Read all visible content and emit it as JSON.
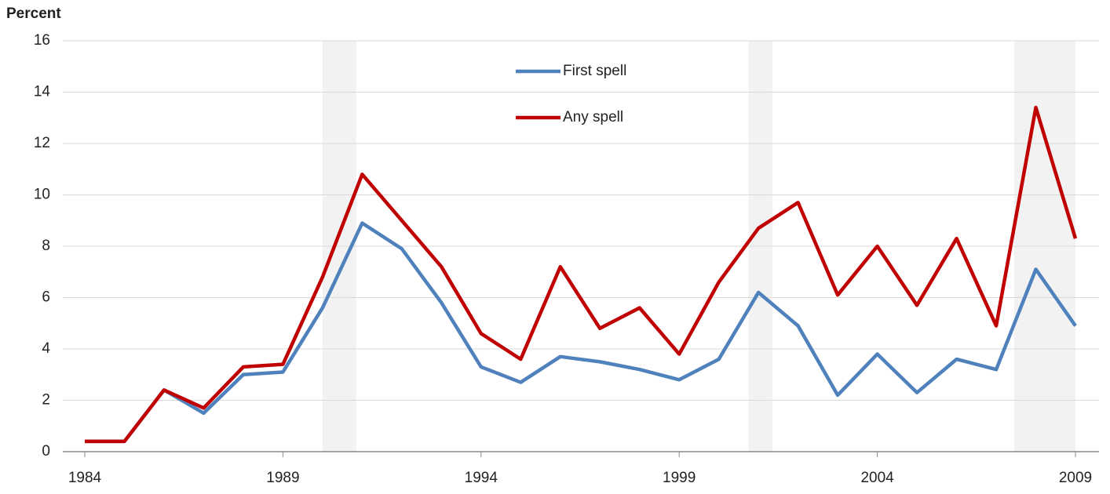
{
  "chart_data": {
    "type": "line",
    "y_label": "Percent",
    "x": [
      1984,
      1985,
      1986,
      1987,
      1988,
      1989,
      1990,
      1991,
      1992,
      1993,
      1994,
      1995,
      1996,
      1997,
      1998,
      1999,
      2000,
      2001,
      2002,
      2003,
      2004,
      2005,
      2006,
      2007,
      2008,
      2009
    ],
    "series": [
      {
        "name": "First spell",
        "color": "#4f81bd",
        "values": [
          0.4,
          0.4,
          2.4,
          1.5,
          3.0,
          3.1,
          5.6,
          8.9,
          7.9,
          5.8,
          3.3,
          2.7,
          3.7,
          3.5,
          3.2,
          2.8,
          3.6,
          6.2,
          4.9,
          2.2,
          3.8,
          2.3,
          3.6,
          3.2,
          7.1,
          4.9
        ]
      },
      {
        "name": "Any spell",
        "color": "#c00000",
        "values": [
          0.4,
          0.4,
          2.4,
          1.7,
          3.3,
          3.4,
          6.8,
          10.8,
          9.0,
          7.2,
          4.6,
          3.6,
          7.2,
          4.8,
          5.6,
          3.8,
          6.6,
          8.7,
          9.7,
          6.1,
          8.0,
          5.7,
          8.3,
          4.9,
          13.4,
          8.3
        ]
      }
    ],
    "xlim": [
      1984,
      2009
    ],
    "xticks": [
      1984,
      1989,
      1994,
      1999,
      2004,
      2009
    ],
    "ylim": [
      0,
      16
    ],
    "yticks": [
      0,
      2,
      4,
      6,
      8,
      10,
      12,
      14,
      16
    ],
    "grid": true,
    "shaded_periods": [
      [
        1990,
        1990.85
      ],
      [
        2000.75,
        2001.35
      ],
      [
        2007.45,
        2009
      ]
    ],
    "shade_color": "#f2f2f2",
    "legend": "top-center"
  }
}
